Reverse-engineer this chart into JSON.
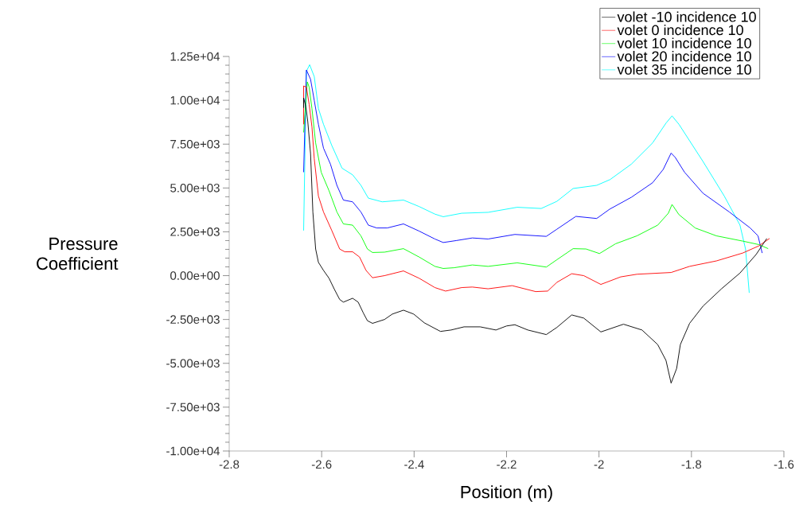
{
  "chart_data": {
    "type": "line",
    "xlabel": "Position (m)",
    "ylabel": "Pressure Coefficient",
    "xlim": [
      -2.8,
      -1.6
    ],
    "xticks": [
      -2.8,
      -2.6,
      -2.4,
      -2.2,
      -2,
      -1.8,
      -1.6
    ],
    "ylim": [
      -10000,
      12500
    ],
    "yticks": [
      {
        "value": -10000,
        "label": "-1.00e+04"
      },
      {
        "value": -7500,
        "label": "-7.50e+03"
      },
      {
        "value": -5000,
        "label": "-5.00e+03"
      },
      {
        "value": -2500,
        "label": "-2.50e+03"
      },
      {
        "value": 0,
        "label": "0.00e+00"
      },
      {
        "value": 2500,
        "label": "2.50e+03"
      },
      {
        "value": 5000,
        "label": "5.00e+03"
      },
      {
        "value": 7500,
        "label": "7.50e+03"
      },
      {
        "value": 10000,
        "label": "1.00e+04"
      },
      {
        "value": 12500,
        "label": "1.25e+04"
      }
    ],
    "legend": "top right",
    "marker": "none",
    "line_style": "solid",
    "series": [
      {
        "name": "volet -10 incidence 10",
        "color": "#000000",
        "x": [
          -2.639,
          -2.639,
          -2.634,
          -2.63,
          -2.624,
          -2.619,
          -2.613,
          -2.607,
          -2.596,
          -2.584,
          -2.573,
          -2.561,
          -2.553,
          -2.533,
          -2.521,
          -2.51,
          -2.501,
          -2.49,
          -2.464,
          -2.447,
          -2.423,
          -2.401,
          -2.378,
          -2.343,
          -2.32,
          -2.292,
          -2.257,
          -2.223,
          -2.2,
          -2.182,
          -2.154,
          -2.114,
          -2.091,
          -2.059,
          -2.033,
          -1.996,
          -1.947,
          -1.907,
          -1.873,
          -1.855,
          -1.844,
          -1.832,
          -1.824,
          -1.804,
          -1.775,
          -1.735,
          -1.695,
          -1.66,
          -1.637
        ],
        "values": [
          9570,
          10140,
          9610,
          8780,
          6960,
          3630,
          1520,
          760,
          300,
          -150,
          -750,
          -1360,
          -1510,
          -1290,
          -1510,
          -2120,
          -2570,
          -2720,
          -2500,
          -2190,
          -1970,
          -2190,
          -2690,
          -3180,
          -3100,
          -2920,
          -2920,
          -3100,
          -2870,
          -2800,
          -3100,
          -3360,
          -2950,
          -2240,
          -2420,
          -3210,
          -2770,
          -3100,
          -3930,
          -4840,
          -6130,
          -5290,
          -3930,
          -2720,
          -1740,
          -750,
          150,
          1210,
          2120
        ]
      },
      {
        "name": "volet 0 incidence 10",
        "color": "#ff0000",
        "x": [
          -2.639,
          -2.639,
          -2.633,
          -2.627,
          -2.621,
          -2.616,
          -2.607,
          -2.596,
          -2.578,
          -2.561,
          -2.55,
          -2.533,
          -2.518,
          -2.504,
          -2.49,
          -2.464,
          -2.423,
          -2.389,
          -2.355,
          -2.332,
          -2.297,
          -2.274,
          -2.24,
          -2.188,
          -2.137,
          -2.111,
          -2.091,
          -2.059,
          -2.033,
          -1.996,
          -1.953,
          -1.918,
          -1.844,
          -1.804,
          -1.746,
          -1.689,
          -1.654,
          -1.631
        ],
        "values": [
          8630,
          10820,
          10750,
          9760,
          8480,
          6660,
          4540,
          3630,
          2570,
          1520,
          1360,
          1360,
          1060,
          300,
          -120,
          0,
          270,
          -150,
          -680,
          -880,
          -680,
          -650,
          -750,
          -570,
          -910,
          -880,
          -380,
          110,
          0,
          -500,
          -70,
          80,
          180,
          530,
          840,
          1290,
          1700,
          2120
        ]
      },
      {
        "name": "volet 10 incidence 10",
        "color": "#00ff00",
        "x": [
          -2.639,
          -2.631,
          -2.627,
          -2.621,
          -2.613,
          -2.601,
          -2.584,
          -2.567,
          -2.553,
          -2.533,
          -2.515,
          -2.501,
          -2.49,
          -2.464,
          -2.423,
          -2.389,
          -2.355,
          -2.337,
          -2.314,
          -2.274,
          -2.24,
          -2.177,
          -2.114,
          -2.091,
          -2.056,
          -2.028,
          -1.999,
          -1.964,
          -1.918,
          -1.873,
          -1.85,
          -1.842,
          -1.827,
          -1.792,
          -1.746,
          -1.689,
          -1.654,
          -1.634
        ],
        "values": [
          8170,
          11050,
          10750,
          9530,
          7570,
          5900,
          4840,
          3630,
          2950,
          2880,
          2270,
          1520,
          1320,
          1340,
          1540,
          1060,
          530,
          410,
          450,
          610,
          530,
          730,
          490,
          910,
          1540,
          1520,
          1260,
          1820,
          2270,
          2880,
          3560,
          4060,
          3480,
          2720,
          2270,
          1970,
          1770,
          1540
        ]
      },
      {
        "name": "volet 20 incidence 10",
        "color": "#0000ff",
        "x": [
          -2.639,
          -2.633,
          -2.624,
          -2.616,
          -2.607,
          -2.596,
          -2.581,
          -2.567,
          -2.553,
          -2.533,
          -2.515,
          -2.499,
          -2.481,
          -2.458,
          -2.423,
          -2.389,
          -2.355,
          -2.337,
          -2.309,
          -2.274,
          -2.24,
          -2.182,
          -2.114,
          -2.091,
          -2.05,
          -2.005,
          -1.977,
          -1.93,
          -1.884,
          -1.861,
          -1.844,
          -1.835,
          -1.815,
          -1.775,
          -1.718,
          -1.673,
          -1.656,
          -1.647
        ],
        "values": [
          5900,
          11730,
          11200,
          9990,
          8630,
          7270,
          6360,
          5150,
          4310,
          4210,
          3630,
          2880,
          2720,
          2720,
          2950,
          2540,
          2090,
          1890,
          2000,
          2150,
          2090,
          2350,
          2240,
          2650,
          3380,
          3260,
          3790,
          4470,
          5300,
          6060,
          6990,
          6740,
          5900,
          4700,
          3630,
          2720,
          2270,
          1290
        ]
      },
      {
        "name": "volet 35 incidence 10",
        "color": "#00ffff",
        "x": [
          -2.639,
          -2.633,
          -2.626,
          -2.616,
          -2.607,
          -2.596,
          -2.578,
          -2.556,
          -2.533,
          -2.515,
          -2.499,
          -2.469,
          -2.423,
          -2.389,
          -2.355,
          -2.337,
          -2.297,
          -2.24,
          -2.177,
          -2.125,
          -2.091,
          -2.056,
          -2.005,
          -1.976,
          -1.93,
          -1.884,
          -1.855,
          -1.842,
          -1.827,
          -1.775,
          -1.729,
          -1.695,
          -1.683,
          -1.675
        ],
        "values": [
          2570,
          11650,
          12030,
          11350,
          9530,
          8630,
          7420,
          6130,
          5750,
          5150,
          4420,
          4210,
          4310,
          3940,
          3510,
          3360,
          3560,
          3610,
          3900,
          3830,
          4240,
          4970,
          5150,
          5480,
          6360,
          7570,
          8700,
          9110,
          8630,
          6510,
          4540,
          2880,
          1520,
          -980
        ]
      }
    ]
  }
}
